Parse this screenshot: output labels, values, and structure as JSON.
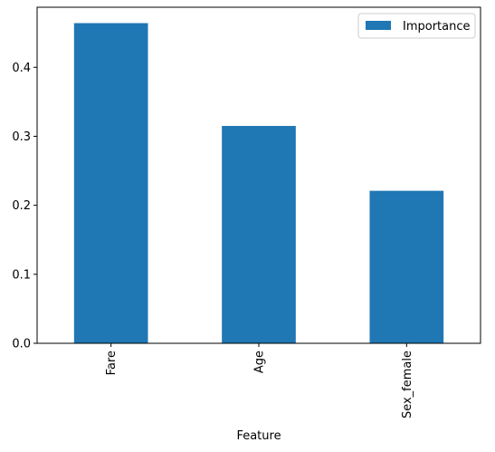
{
  "chart_data": {
    "type": "bar",
    "categories": [
      "Fare",
      "Age",
      "Sex_female"
    ],
    "series": [
      {
        "name": "Importance",
        "values": [
          0.464,
          0.315,
          0.221
        ]
      }
    ],
    "xlabel": "Feature",
    "ylabel": "",
    "ylim": [
      0,
      0.487
    ],
    "yticks": [
      0.0,
      0.1,
      0.2,
      0.3,
      0.4
    ],
    "ytick_labels": [
      "0.0",
      "0.1",
      "0.2",
      "0.3",
      "0.4"
    ],
    "grid": false,
    "legend_position": "top-right",
    "x_tick_rotation": 90,
    "bar_color": "#1f77b4"
  }
}
